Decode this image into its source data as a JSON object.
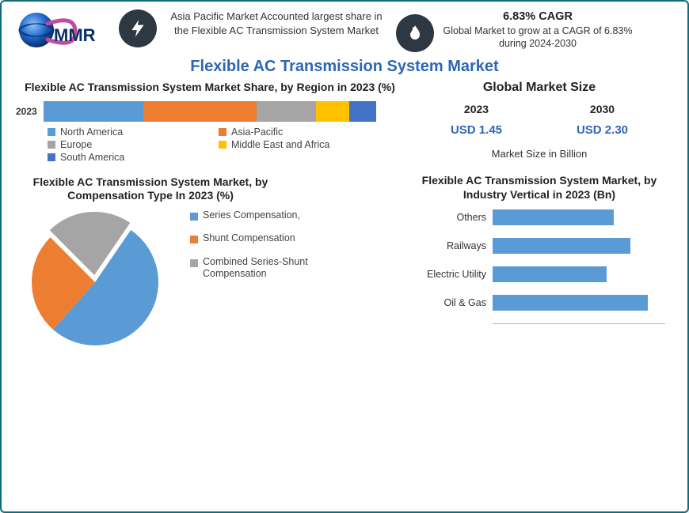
{
  "logo": {
    "text": "MMR"
  },
  "callout_a": {
    "text": "Asia Pacific Market Accounted largest share in the Flexible AC Transmission System Market"
  },
  "callout_b": {
    "headline": "6.83% CAGR",
    "text": "Global Market to grow at a CAGR of 6.83% during 2024-2030"
  },
  "main_title": "Flexible AC Transmission System Market",
  "stacked_chart": {
    "title": "Flexible AC Transmission System Market Share, by Region in 2023 (%)",
    "year": "2023",
    "type": "stacked-bar",
    "segments": [
      {
        "label": "North America",
        "value": 30,
        "color": "#5b9bd5"
      },
      {
        "label": "Asia-Pacific",
        "value": 34,
        "color": "#ed7d31"
      },
      {
        "label": "Europe",
        "value": 18,
        "color": "#a5a5a5"
      },
      {
        "label": "Middle East and Africa",
        "value": 10,
        "color": "#ffc000"
      },
      {
        "label": "South America",
        "value": 8,
        "color": "#4472c4"
      }
    ]
  },
  "global_market_size": {
    "title": "Global Market Size",
    "points": [
      {
        "year": "2023",
        "value": "USD 1.45"
      },
      {
        "year": "2030",
        "value": "USD 2.30"
      }
    ],
    "unit": "Market Size in Billion",
    "value_color": "#2f66b3"
  },
  "pie_chart": {
    "title": "Flexible AC Transmission System Market, by Compensation Type In 2023 (%)",
    "type": "pie",
    "slices": [
      {
        "label": "Series Compensation,",
        "value": 52,
        "color": "#5b9bd5"
      },
      {
        "label": "Shunt Compensation",
        "value": 26,
        "color": "#ed7d31"
      },
      {
        "label": "Combined Series-Shunt Compensation",
        "value": 22,
        "color": "#a5a5a5"
      }
    ],
    "exploded_index": 2,
    "background_color": "#ffffff"
  },
  "hbar_chart": {
    "title": "Flexible AC Transmission System Market, by Industry Vertical in 2023 (Bn)",
    "type": "bar-horizontal",
    "bar_color": "#5b9bd5",
    "xlim": [
      0,
      1.0
    ],
    "bars": [
      {
        "label": "Others",
        "value": 0.7
      },
      {
        "label": "Railways",
        "value": 0.8
      },
      {
        "label": "Electric Utility",
        "value": 0.66
      },
      {
        "label": "Oil & Gas",
        "value": 0.9
      }
    ]
  },
  "colors": {
    "frame_border": "#106b7a",
    "title_color": "#2f66b3",
    "icon_bg": "#2d3842"
  }
}
